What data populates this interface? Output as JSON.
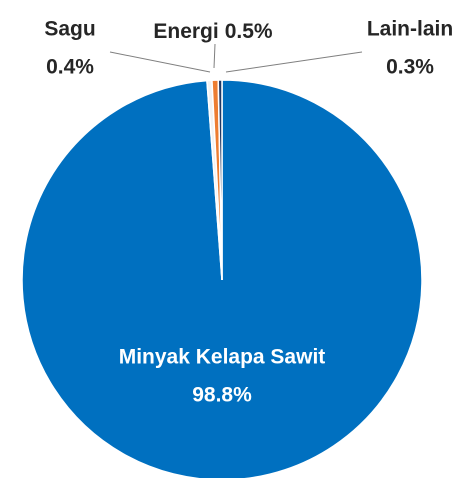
{
  "chart_data": {
    "type": "pie",
    "categories": [
      "Minyak Kelapa Sawit",
      "Sagu",
      "Energi",
      "Lain-lain"
    ],
    "values": [
      98.8,
      0.4,
      0.5,
      0.3
    ],
    "value_labels": [
      "98.8%",
      "0.4%",
      "0.5%",
      "0.3%"
    ],
    "colors": [
      "#0070c0",
      "#f2f2f2",
      "#ed7d31",
      "#1f3864"
    ]
  }
}
